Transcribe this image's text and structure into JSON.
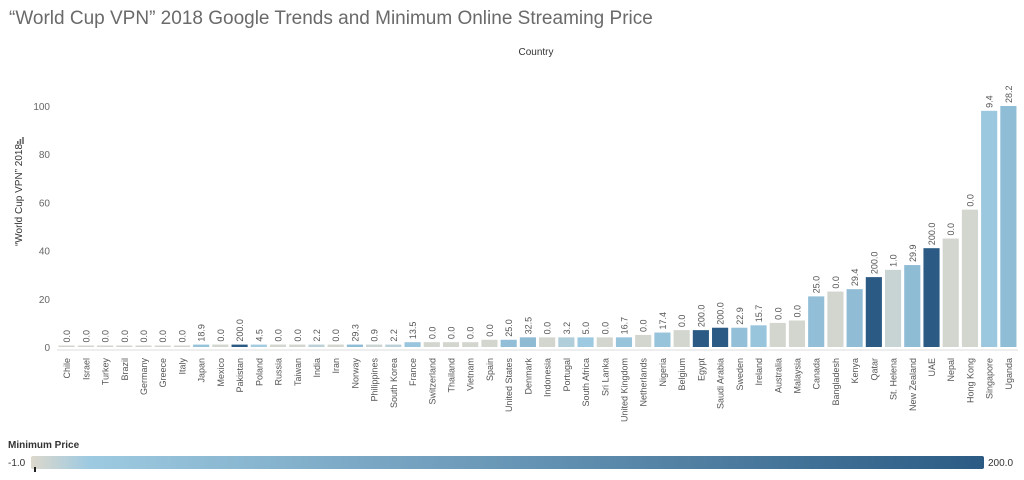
{
  "chart_data": {
    "type": "bar",
    "title": "“World Cup VPN” 2018 Google Trends and Minimum Online Streaming Price",
    "xlabel": "Country",
    "ylabel": "“World Cup VPN” 2018",
    "yticks": [
      0,
      20,
      40,
      60,
      80,
      100
    ],
    "ylim": [
      0,
      100
    ],
    "grid": false,
    "categories": [
      "Chile",
      "Israel",
      "Turkey",
      "Brazil",
      "Germany",
      "Greece",
      "Italy",
      "Japan",
      "Mexico",
      "Pakistan",
      "Poland",
      "Russia",
      "Taiwan",
      "India",
      "Iran",
      "Norway",
      "Philippines",
      "South Korea",
      "France",
      "Switzerland",
      "Thailand",
      "Vietnam",
      "Spain",
      "United States",
      "Denmark",
      "Indonesia",
      "Portugal",
      "South Africa",
      "Sri Lanka",
      "United Kingdom",
      "Netherlands",
      "Nigeria",
      "Belgium",
      "Egypt",
      "Saudi Arabia",
      "Sweden",
      "Ireland",
      "Australia",
      "Malaysia",
      "Canada",
      "Bangladesh",
      "Kenya",
      "Qatar",
      "St. Helena",
      "New Zealand",
      "UAE",
      "Nepal",
      "Hong Kong",
      "Singapore",
      "Uganda"
    ],
    "values": [
      0,
      0,
      0,
      0,
      0,
      0,
      0,
      1,
      1,
      1,
      1,
      1,
      1,
      1,
      1,
      1,
      1,
      1,
      2,
      2,
      2,
      2,
      3,
      3,
      4,
      4,
      4,
      4,
      4,
      4,
      5,
      6,
      7,
      7,
      8,
      8,
      9,
      10,
      11,
      21,
      23,
      24,
      29,
      32,
      34,
      41,
      45,
      57,
      98,
      100
    ],
    "data_labels": [
      "0.0",
      "0.0",
      "0.0",
      "0.0",
      "0.0",
      "0.0",
      "0.0",
      "18.9",
      "0.0",
      "200.0",
      "4.5",
      "0.0",
      "0.0",
      "2.2",
      "0.0",
      "29.3",
      "0.9",
      "2.2",
      "13.5",
      "0.0",
      "0.0",
      "0.0",
      "0.0",
      "25.0",
      "32.5",
      "0.0",
      "3.2",
      "5.0",
      "0.0",
      "16.7",
      "0.0",
      "17.4",
      "0.0",
      "200.0",
      "200.0",
      "22.9",
      "15.7",
      "0.0",
      "0.0",
      "25.0",
      "0.0",
      "29.4",
      "200.0",
      "1.0",
      "29.9",
      "200.0",
      "0.0",
      "0.0",
      "9.4",
      "28.2"
    ],
    "color_values": [
      0,
      0,
      0,
      0,
      0,
      0,
      0,
      18.9,
      0,
      200,
      4.5,
      0,
      0,
      2.2,
      0,
      29.3,
      0.9,
      2.2,
      13.5,
      0,
      0,
      0,
      0,
      25,
      32.5,
      0,
      3.2,
      5,
      0,
      16.7,
      0,
      17.4,
      0,
      200,
      200,
      22.9,
      15.7,
      0,
      0,
      25,
      0,
      29.4,
      200,
      1,
      29.9,
      200,
      0,
      0,
      9.4,
      28.2
    ],
    "legend": {
      "title": "Minimum Price",
      "min_label": "-1.0",
      "max_label": "200.0",
      "range": [
        -1,
        200
      ],
      "colors": [
        "#ddd8cc",
        "#9ecae1",
        "#2b5b84"
      ]
    }
  }
}
